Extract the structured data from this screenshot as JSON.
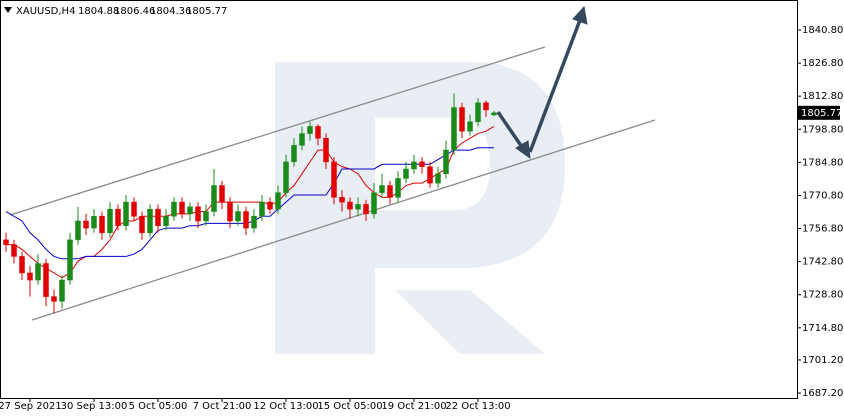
{
  "chart_data": {
    "type": "candlestick",
    "symbol": "XAUUSD,H4",
    "categories": [
      null,
      null,
      null,
      "27 Sep 2021",
      null,
      null,
      null,
      null,
      null,
      null,
      null,
      "30 Sep 13:00",
      null,
      null,
      null,
      null,
      null,
      null,
      null,
      "5 Oct 05:00",
      null,
      null,
      null,
      null,
      null,
      null,
      null,
      "7 Oct 21:00",
      null,
      null,
      null,
      null,
      null,
      null,
      null,
      "12 Oct 13:00",
      null,
      null,
      null,
      null,
      null,
      null,
      null,
      "15 Oct 05:00",
      null,
      null,
      null,
      null,
      null,
      null,
      null,
      "19 Oct 21:00",
      null,
      null,
      null,
      null,
      null,
      null,
      null,
      "22 Oct 13:00",
      null,
      null
    ],
    "open": [
      1752,
      1750,
      1745,
      1738,
      1735,
      1742,
      1728,
      1726,
      1735,
      1752,
      1760,
      1757,
      1762,
      1755,
      1765,
      1758,
      1768,
      1762,
      1755,
      1765,
      1758,
      1762,
      1768,
      1763,
      1766,
      1760,
      1764,
      1775,
      1768,
      1760,
      1764,
      1757,
      1762,
      1768,
      1765,
      1772,
      1785,
      1792,
      1797,
      1800,
      1795,
      1785,
      1770,
      1768,
      1765,
      1767,
      1763,
      1772,
      1775,
      1770,
      1778,
      1782,
      1785,
      1783,
      1776,
      1780,
      1790,
      1808,
      1798,
      1802,
      1810,
      1804.88
    ],
    "high": [
      1755,
      1752,
      1747,
      1741,
      1746,
      1744,
      1731,
      1737,
      1755,
      1766,
      1763,
      1765,
      1764,
      1768,
      1767,
      1771,
      1770,
      1764,
      1767,
      1767,
      1765,
      1770,
      1770,
      1768,
      1768,
      1767,
      1782,
      1777,
      1770,
      1767,
      1766,
      1765,
      1771,
      1770,
      1775,
      1788,
      1795,
      1800,
      1802,
      1801,
      1797,
      1787,
      1773,
      1770,
      1770,
      1769,
      1776,
      1780,
      1777,
      1781,
      1785,
      1788,
      1787,
      1785,
      1783,
      1794,
      1814,
      1810,
      1805,
      1812,
      1811,
      1806.46
    ],
    "low": [
      1747,
      1742,
      1735,
      1728,
      1733,
      1724,
      1721,
      1723,
      1733,
      1750,
      1754,
      1755,
      1752,
      1753,
      1756,
      1756,
      1760,
      1752,
      1753,
      1755,
      1756,
      1760,
      1761,
      1760,
      1757,
      1758,
      1762,
      1765,
      1757,
      1758,
      1754,
      1755,
      1760,
      1763,
      1763,
      1770,
      1783,
      1790,
      1794,
      1792,
      1782,
      1767,
      1764,
      1761,
      1762,
      1760,
      1761,
      1770,
      1767,
      1768,
      1776,
      1780,
      1780,
      1774,
      1774,
      1778,
      1788,
      1795,
      1796,
      1800,
      1804,
      1804.36
    ],
    "close": [
      1750,
      1745,
      1738,
      1735,
      1742,
      1728,
      1726,
      1735,
      1752,
      1760,
      1757,
      1762,
      1755,
      1765,
      1758,
      1768,
      1762,
      1755,
      1765,
      1758,
      1762,
      1768,
      1763,
      1766,
      1760,
      1764,
      1775,
      1768,
      1760,
      1764,
      1757,
      1762,
      1768,
      1765,
      1772,
      1785,
      1792,
      1797,
      1800,
      1795,
      1785,
      1770,
      1768,
      1765,
      1767,
      1763,
      1772,
      1775,
      1770,
      1778,
      1782,
      1785,
      1783,
      1776,
      1780,
      1790,
      1808,
      1798,
      1802,
      1810,
      1807,
      1805.77
    ],
    "up_color": "#1a8a1a",
    "down_color": "#e00000",
    "indicators": [
      {
        "color": "#e00000",
        "values": [
          1750,
          1750,
          1748,
          1745,
          1742,
          1740,
          1738,
          1736,
          1738,
          1743,
          1745,
          1745,
          1748,
          1752,
          1758,
          1760,
          1760,
          1762,
          1762,
          1762,
          1762,
          1763,
          1763,
          1763,
          1764,
          1764,
          1768,
          1768,
          1768,
          1768,
          1768,
          1768,
          1768,
          1767,
          1768,
          1772,
          1775,
          1780,
          1785,
          1790,
          1790,
          1785,
          1783,
          1782,
          1780,
          1775,
          1772,
          1770,
          1770,
          1772,
          1775,
          1776,
          1776,
          1778,
          1780,
          1782,
          1790,
          1793,
          1795,
          1797,
          1798,
          1800
        ]
      },
      {
        "color": "#0000cc",
        "values": [
          1764,
          1762,
          1760,
          1755,
          1752,
          1748,
          1745,
          1744,
          1744,
          1744,
          1745,
          1745,
          1745,
          1745,
          1745,
          1745,
          1746,
          1748,
          1752,
          1756,
          1757,
          1757,
          1757,
          1758,
          1758,
          1759,
          1759,
          1759,
          1759,
          1759,
          1759,
          1760,
          1762,
          1762,
          1765,
          1768,
          1771,
          1771,
          1771,
          1771,
          1771,
          1776,
          1782,
          1782,
          1782,
          1782,
          1782,
          1784,
          1784,
          1784,
          1784,
          1784,
          1784,
          1784,
          1786,
          1788,
          1790,
          1790,
          1790,
          1791,
          1791,
          1791
        ]
      }
    ],
    "ylim": [
      1685.1,
      1853.5
    ],
    "yticks": [
      {
        "value": 1687.2,
        "label": "1687.20"
      },
      {
        "value": 1701.2,
        "label": "1701.20"
      },
      {
        "value": 1714.8,
        "label": "1714.80"
      },
      {
        "value": 1728.8,
        "label": "1728.80"
      },
      {
        "value": 1742.8,
        "label": "1742.80"
      },
      {
        "value": 1756.8,
        "label": "1756.80"
      },
      {
        "value": 1770.8,
        "label": "1770.80"
      },
      {
        "value": 1784.8,
        "label": "1784.80"
      },
      {
        "value": 1798.8,
        "label": "1798.80"
      },
      {
        "value": 1812.8,
        "label": "1812.80"
      },
      {
        "value": 1826.8,
        "label": "1826.80"
      },
      {
        "value": 1840.8,
        "label": "1840.80"
      }
    ],
    "grid": false
  }
}
